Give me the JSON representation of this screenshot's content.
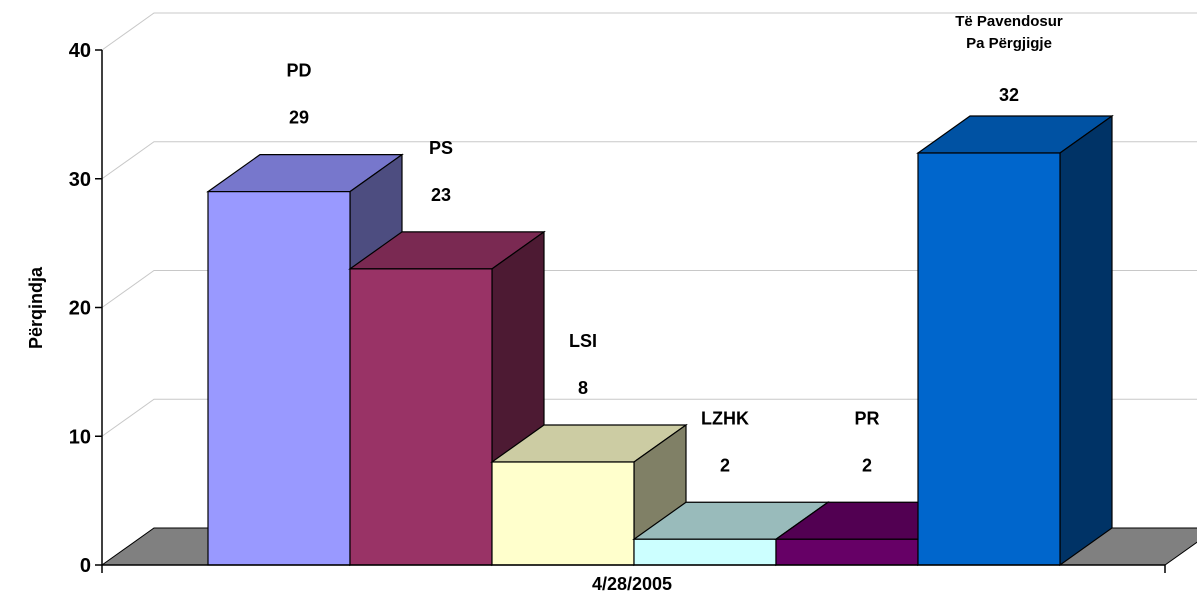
{
  "chart_data": {
    "type": "bar",
    "xlabel": "4/28/2005",
    "ylabel": "Përqindja",
    "ylim": [
      0,
      40
    ],
    "yticks": [
      0,
      10,
      20,
      30,
      40
    ],
    "grid": true,
    "style": "3d",
    "series": [
      {
        "name": "PD",
        "value": 29,
        "label_lines": [
          "PD"
        ],
        "value_label": "29",
        "front": "#9999FF",
        "top": "#7777CC",
        "side": "#4D4D80"
      },
      {
        "name": "PS",
        "value": 23,
        "label_lines": [
          "PS"
        ],
        "value_label": "23",
        "front": "#993366",
        "top": "#7A2952",
        "side": "#4D1A33"
      },
      {
        "name": "LSI",
        "value": 8,
        "label_lines": [
          "LSI"
        ],
        "value_label": "8",
        "front": "#FFFFCC",
        "top": "#CCCCA3",
        "side": "#808066"
      },
      {
        "name": "LZHK",
        "value": 2,
        "label_lines": [
          "LZHK"
        ],
        "value_label": "2",
        "front": "#CCFFFF",
        "top": "#99BBBB",
        "side": "#668080"
      },
      {
        "name": "PR",
        "value": 2,
        "label_lines": [
          "PR"
        ],
        "value_label": "2",
        "front": "#660066",
        "top": "#520052",
        "side": "#330033"
      },
      {
        "name": "Të Pavendosur Pa Përgjigje",
        "value": 32,
        "label_lines": [
          "Të Pavendosur",
          "Pa Përgjigje"
        ],
        "value_label": "32",
        "front": "#0066CC",
        "top": "#0052A3",
        "side": "#003366"
      }
    ],
    "floor_color": "#808080"
  }
}
